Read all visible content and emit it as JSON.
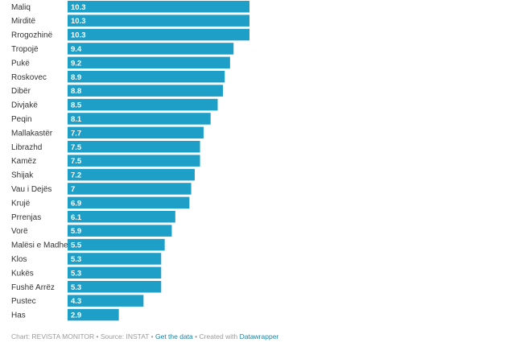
{
  "chart_data": {
    "type": "bar",
    "orientation": "horizontal",
    "categories": [
      "Maliq",
      "Mirditë",
      "Rrogozhinë",
      "Tropojë",
      "Pukë",
      "Roskovec",
      "Dibër",
      "Divjakë",
      "Peqin",
      "Mallakastër",
      "Librazhd",
      "Kamëz",
      "Shijak",
      "Vau i Dejës",
      "Krujë",
      "Prrenjas",
      "Vorë",
      "Malësi e Madhe",
      "Klos",
      "Kukës",
      "Fushë Arrëz",
      "Pustec",
      "Has"
    ],
    "values": [
      10.3,
      10.3,
      10.3,
      9.4,
      9.2,
      8.9,
      8.8,
      8.5,
      8.1,
      7.7,
      7.5,
      7.5,
      7.2,
      7,
      6.9,
      6.1,
      5.9,
      5.5,
      5.3,
      5.3,
      5.3,
      4.3,
      2.9
    ],
    "value_labels": [
      "10.3",
      "10.3",
      "10.3",
      "9.4",
      "9.2",
      "8.9",
      "8.8",
      "8.5",
      "8.1",
      "7.7",
      "7.5",
      "7.5",
      "7.2",
      "7",
      "6.9",
      "6.1",
      "5.9",
      "5.5",
      "5.3",
      "5.3",
      "5.3",
      "4.3",
      "2.9"
    ],
    "bar_color": "#1d9fc8",
    "label_color": "#ffffff",
    "grid": false,
    "legend": "none"
  },
  "footer": {
    "chart_credit": "Chart: REVISTA MONITOR",
    "separator": " • ",
    "source": "Source: INSTAT",
    "get_data_link": "Get the data",
    "created_with": "Created with ",
    "datawrapper_link": "Datawrapper"
  }
}
